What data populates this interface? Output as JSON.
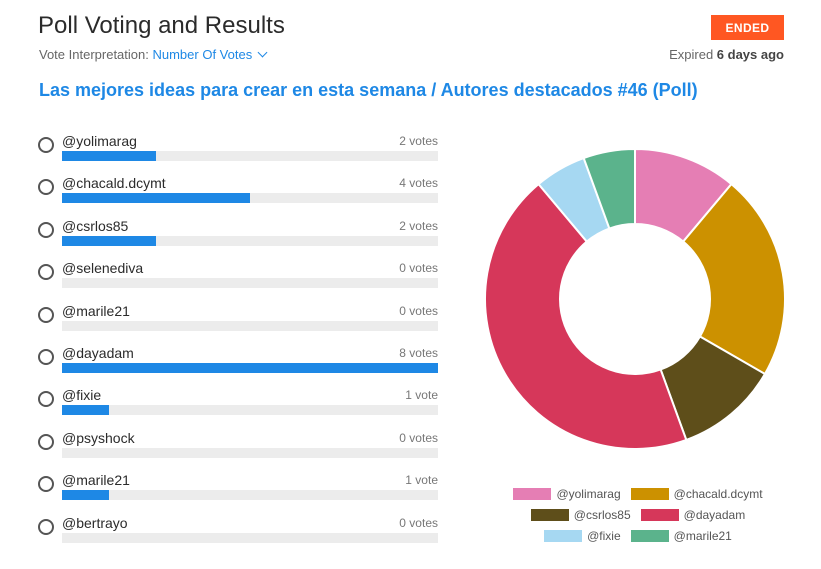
{
  "header": {
    "title": "Poll Voting and Results",
    "interpretation_label": "Vote Interpretation:",
    "interpretation_value": "Number Of Votes",
    "status_badge": "ENDED",
    "expired_prefix": "Expired",
    "expired_value": "6 days ago"
  },
  "poll": {
    "title": "Las mejores ideas para crear en esta semana / Autores destacados #46 (Poll)",
    "options": [
      {
        "name": "@yolimarag",
        "votes_label": "2 votes",
        "fraction": 0.25
      },
      {
        "name": "@chacald.dcymt",
        "votes_label": "4 votes",
        "fraction": 0.5
      },
      {
        "name": "@csrlos85",
        "votes_label": "2 votes",
        "fraction": 0.25
      },
      {
        "name": "@selenediva",
        "votes_label": "0 votes",
        "fraction": 0
      },
      {
        "name": "@marile21",
        "votes_label": "0 votes",
        "fraction": 0
      },
      {
        "name": "@dayadam",
        "votes_label": "8 votes",
        "fraction": 1.0
      },
      {
        "name": "@fixie",
        "votes_label": "1 vote",
        "fraction": 0.125
      },
      {
        "name": "@psyshock",
        "votes_label": "0 votes",
        "fraction": 0
      },
      {
        "name": "@marile21",
        "votes_label": "1 vote",
        "fraction": 0.125
      },
      {
        "name": "@bertrayo",
        "votes_label": "0 votes",
        "fraction": 0
      }
    ]
  },
  "chart_data": {
    "type": "pie",
    "series": [
      {
        "name": "@yolimarag",
        "value": 2,
        "color": "#e57eb4"
      },
      {
        "name": "@chacald.dcymt",
        "value": 4,
        "color": "#cc9100"
      },
      {
        "name": "@csrlos85",
        "value": 2,
        "color": "#5e4e1a"
      },
      {
        "name": "@dayadam",
        "value": 8,
        "color": "#d6375a"
      },
      {
        "name": "@fixie",
        "value": 1,
        "color": "#a6d8f2"
      },
      {
        "name": "@marile21",
        "value": 1,
        "color": "#5bb38c"
      }
    ],
    "legend_position": "bottom"
  }
}
